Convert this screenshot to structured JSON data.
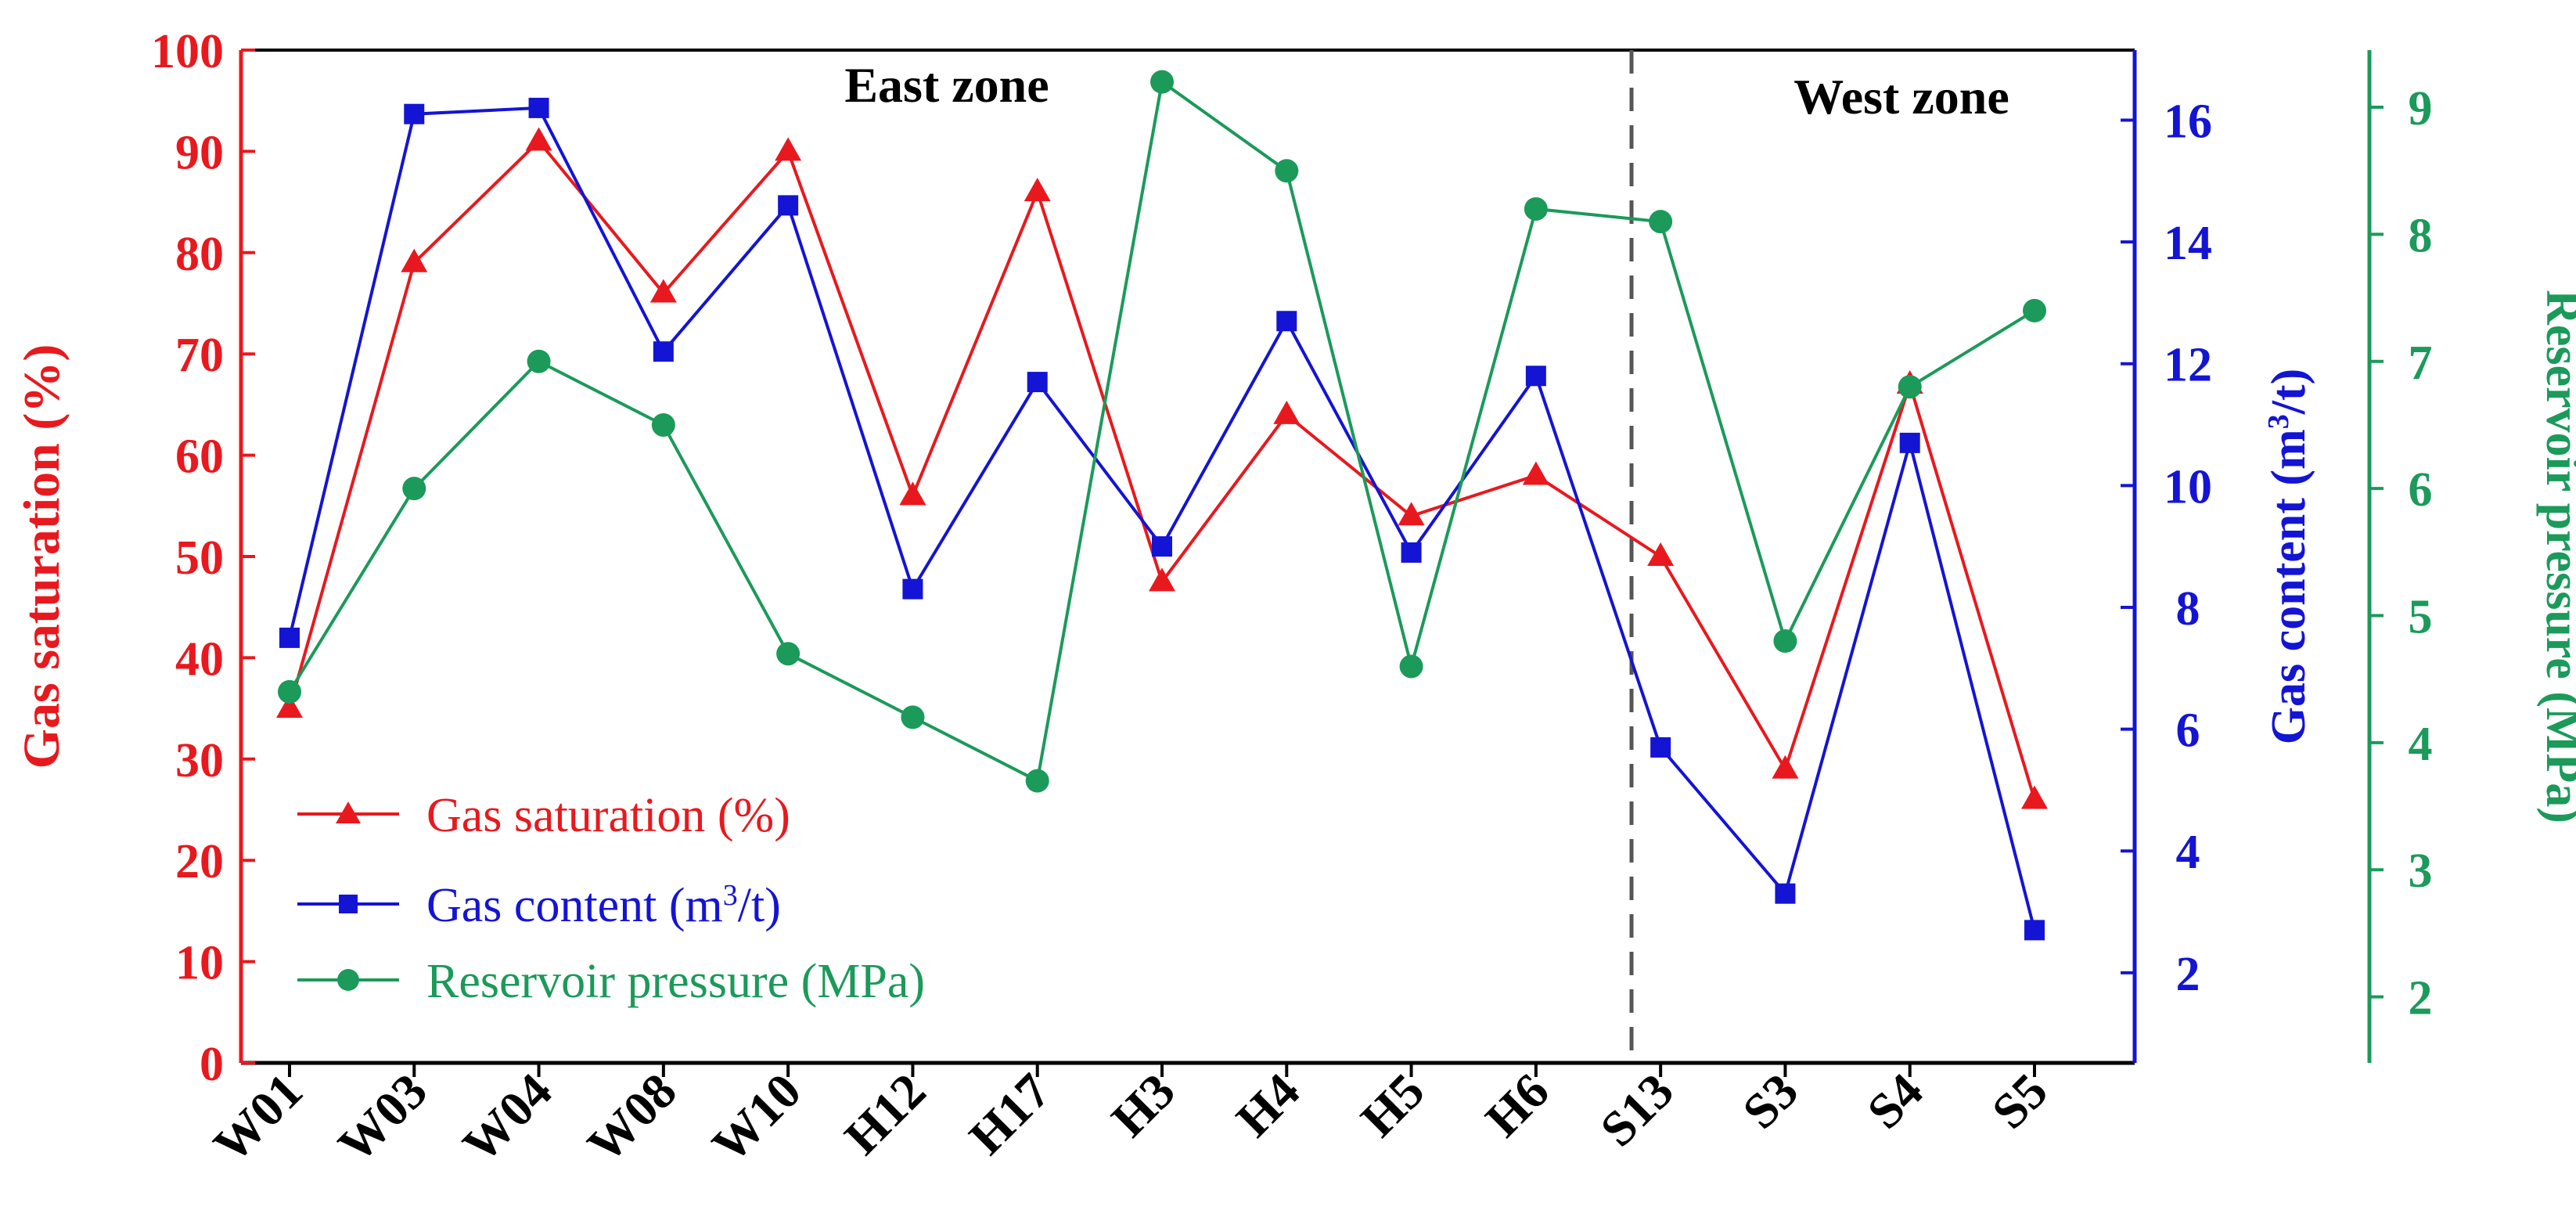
{
  "colors": {
    "red": "#e8191e",
    "blue": "#1414d4",
    "green": "#1b9a5a",
    "axis": "#000000",
    "divider": "#555555"
  },
  "zones": {
    "east": "East zone",
    "west": "West zone"
  },
  "axes": {
    "left": {
      "label": "Gas saturation (%)",
      "ticks": [
        "0",
        "10",
        "20",
        "30",
        "40",
        "50",
        "60",
        "70",
        "80",
        "90",
        "100"
      ],
      "range": [
        0,
        100
      ]
    },
    "right1": {
      "label_main": "Gas content (m",
      "label_sup": "3",
      "label_tail": "/t)",
      "ticks": [
        "2",
        "4",
        "6",
        "8",
        "10",
        "12",
        "14",
        "16"
      ],
      "range": [
        0.52,
        17.15
      ]
    },
    "right2": {
      "label": "Reservoir pressure (MPa)",
      "ticks": [
        "2",
        "3",
        "4",
        "5",
        "6",
        "7",
        "8",
        "9"
      ],
      "range": [
        1.48,
        9.45
      ]
    }
  },
  "legend": {
    "items": [
      {
        "text": "Gas saturation (%)"
      },
      {
        "text_main": "Gas content (m",
        "text_sup": "3",
        "text_tail": "/t)"
      },
      {
        "text": "Reservoir pressure (MPa)"
      }
    ]
  },
  "chart_data": {
    "type": "line",
    "categories": [
      "W01",
      "W03",
      "W04",
      "W08",
      "W10",
      "H12",
      "H17",
      "H3",
      "H4",
      "H5",
      "H6",
      "S13",
      "S3",
      "S4",
      "S5"
    ],
    "divider_between": [
      "H6",
      "S13"
    ],
    "series": [
      {
        "name": "Gas saturation (%)",
        "axis": "left",
        "marker": "triangle",
        "color": "red",
        "values": [
          35,
          79,
          91,
          76,
          90,
          56,
          86,
          47.5,
          64,
          54,
          58,
          50,
          29,
          67,
          26
        ]
      },
      {
        "name": "Gas content (m3/t)",
        "axis": "right1",
        "marker": "square",
        "color": "blue",
        "values": [
          7.5,
          16.1,
          16.2,
          12.2,
          14.6,
          8.3,
          11.7,
          9.0,
          12.7,
          8.9,
          11.8,
          5.7,
          3.3,
          10.7,
          2.7
        ]
      },
      {
        "name": "Reservoir pressure (MPa)",
        "axis": "right2",
        "marker": "circle",
        "color": "green",
        "values": [
          4.4,
          6.0,
          7.0,
          6.5,
          4.7,
          4.2,
          3.7,
          9.2,
          8.5,
          4.6,
          8.2,
          8.1,
          4.8,
          6.8,
          7.4
        ],
        "connected": [
          true,
          true,
          true,
          true,
          true,
          true,
          true,
          true,
          true,
          true,
          true,
          true,
          true,
          true,
          true
        ]
      }
    ]
  }
}
